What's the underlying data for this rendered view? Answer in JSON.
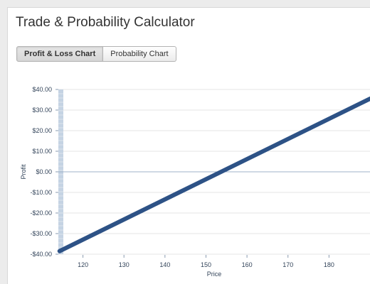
{
  "app": {
    "title": "Trade & Probability Calculator"
  },
  "tabs": [
    {
      "label": "Profit & Loss Chart",
      "active": true
    },
    {
      "label": "Probability Chart",
      "active": false
    }
  ],
  "colors": {
    "line": "#2d5286",
    "zero_line": "#9fb3c8",
    "band": "#c5d3e3",
    "grid": "#e6e6e6"
  },
  "chart_data": {
    "type": "line",
    "title": "",
    "xlabel": "Price",
    "ylabel": "Profit",
    "xlim": [
      114,
      190
    ],
    "ylim": [
      -40,
      40
    ],
    "x_ticks": [
      120,
      130,
      140,
      150,
      160,
      170,
      180
    ],
    "y_ticks": [
      40,
      30,
      20,
      10,
      0,
      -10,
      -20,
      -30,
      -40
    ],
    "x_tick_labels": [
      "120",
      "130",
      "140",
      "150",
      "160",
      "170",
      "180"
    ],
    "y_tick_labels": [
      "$40.00",
      "$30.00",
      "$20.00",
      "$10.00",
      "$0.00",
      "-$10.00",
      "-$20.00",
      "-$30.00",
      "-$40.00"
    ],
    "grid": true,
    "series": [
      {
        "x": [
          114.3,
          190
        ],
        "y": [
          -38.5,
          35.5
        ]
      }
    ]
  }
}
